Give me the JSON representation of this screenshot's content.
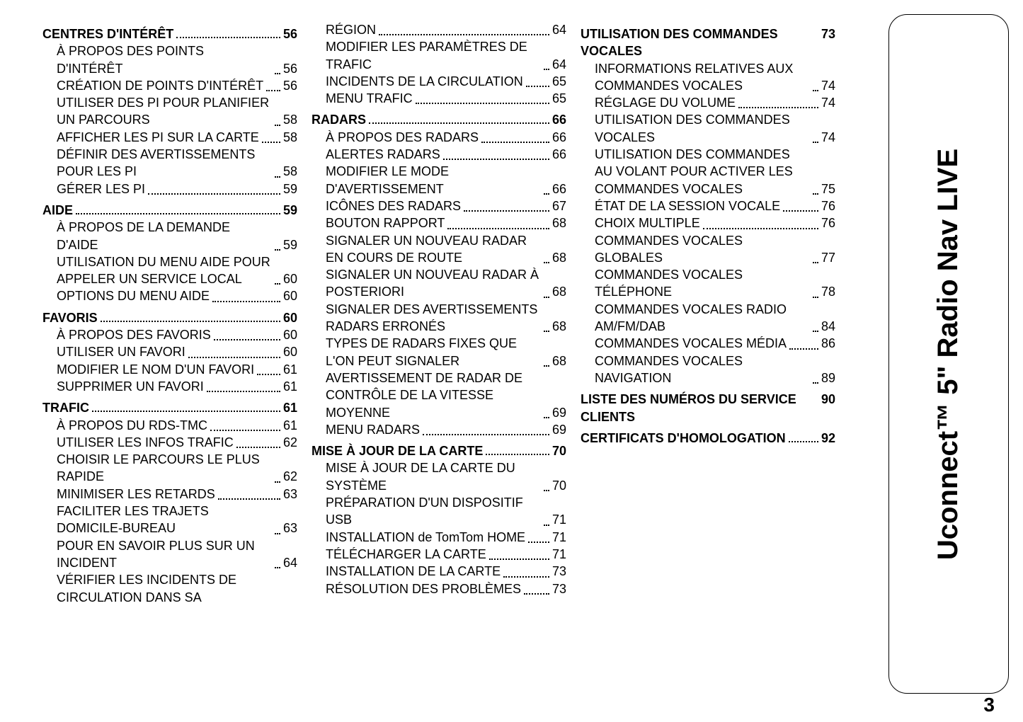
{
  "page_number": "3",
  "side_tab": "Uconnect™ 5\" Radio Nav LIVE",
  "columns": [
    [
      {
        "type": "section",
        "label": "CENTRES D'INTÉRÊT",
        "page": "56"
      },
      {
        "type": "item",
        "label": "À PROPOS DES POINTS D'INTÉRÊT",
        "page": "56"
      },
      {
        "type": "item",
        "label": "CRÉATION DE POINTS D'INTÉRÊT",
        "page": "56"
      },
      {
        "type": "item",
        "label": "UTILISER DES PI POUR PLANIFIER UN PARCOURS",
        "page": "58"
      },
      {
        "type": "item",
        "label": "AFFICHER LES PI SUR LA CARTE",
        "page": "58"
      },
      {
        "type": "item",
        "label": "DÉFINIR DES AVERTISSEMENTS POUR LES PI",
        "page": "58"
      },
      {
        "type": "item",
        "label": "GÉRER LES PI",
        "page": "59"
      },
      {
        "type": "section",
        "label": "AIDE",
        "page": "59"
      },
      {
        "type": "item",
        "label": "À PROPOS DE LA DEMANDE D'AIDE",
        "page": "59"
      },
      {
        "type": "item",
        "label": "UTILISATION DU MENU AIDE POUR APPELER UN SERVICE LOCAL",
        "page": "60"
      },
      {
        "type": "item",
        "label": "OPTIONS DU MENU AIDE",
        "page": "60"
      },
      {
        "type": "section",
        "label": "FAVORIS",
        "page": "60"
      },
      {
        "type": "item",
        "label": "À PROPOS DES FAVORIS",
        "page": "60"
      },
      {
        "type": "item",
        "label": "UTILISER UN FAVORI",
        "page": "60"
      },
      {
        "type": "item",
        "label": "MODIFIER LE NOM D'UN FAVORI",
        "page": "61"
      },
      {
        "type": "item",
        "label": "SUPPRIMER UN FAVORI",
        "page": "61"
      },
      {
        "type": "section",
        "label": "TRAFIC",
        "page": "61"
      },
      {
        "type": "item",
        "label": "À PROPOS DU RDS-TMC",
        "page": "61"
      },
      {
        "type": "item",
        "label": "UTILISER LES INFOS TRAFIC",
        "page": "62"
      },
      {
        "type": "item",
        "label": "CHOISIR LE PARCOURS LE PLUS RAPIDE",
        "page": "62"
      },
      {
        "type": "item",
        "label": "MINIMISER LES RETARDS",
        "page": "63"
      },
      {
        "type": "item",
        "label": "FACILITER LES TRAJETS DOMICILE-BUREAU",
        "page": "63"
      },
      {
        "type": "item",
        "label": "POUR EN SAVOIR PLUS SUR UN INCIDENT",
        "page": "64"
      },
      {
        "type": "item",
        "label": "VÉRIFIER LES INCIDENTS DE CIRCULATION DANS SA",
        "page": ""
      }
    ],
    [
      {
        "type": "item",
        "label": "RÉGION",
        "page": "64"
      },
      {
        "type": "item",
        "label": "MODIFIER LES PARAMÈTRES DE TRAFIC",
        "page": "64"
      },
      {
        "type": "item",
        "label": "INCIDENTS DE LA CIRCULATION",
        "page": "65"
      },
      {
        "type": "item",
        "label": "MENU TRAFIC",
        "page": "65"
      },
      {
        "type": "section",
        "label": "RADARS",
        "page": "66"
      },
      {
        "type": "item",
        "label": "À PROPOS DES RADARS",
        "page": "66"
      },
      {
        "type": "item",
        "label": "ALERTES RADARS",
        "page": "66"
      },
      {
        "type": "item",
        "label": "MODIFIER LE MODE D'AVERTISSEMENT",
        "page": "66"
      },
      {
        "type": "item",
        "label": "ICÔNES DES RADARS",
        "page": "67"
      },
      {
        "type": "item",
        "label": "BOUTON RAPPORT",
        "page": "68"
      },
      {
        "type": "item",
        "label": "SIGNALER UN NOUVEAU RADAR EN COURS DE ROUTE",
        "page": "68"
      },
      {
        "type": "item",
        "label": "SIGNALER UN NOUVEAU RADAR À POSTERIORI",
        "page": "68"
      },
      {
        "type": "item",
        "label": "SIGNALER DES AVERTISSEMENTS RADARS ERRONÉS",
        "page": "68"
      },
      {
        "type": "item",
        "label": "TYPES DE RADARS FIXES QUE L'ON PEUT SIGNALER",
        "page": "68"
      },
      {
        "type": "item",
        "label": "AVERTISSEMENT DE RADAR DE CONTRÔLE DE LA VITESSE MOYENNE",
        "page": "69"
      },
      {
        "type": "item",
        "label": "MENU RADARS",
        "page": "69"
      },
      {
        "type": "section",
        "label": "MISE À JOUR DE LA CARTE",
        "page": "70"
      },
      {
        "type": "item",
        "label": "MISE À JOUR DE LA CARTE DU SYSTÈME",
        "page": "70"
      },
      {
        "type": "item",
        "label": "PRÉPARATION D'UN DISPOSITIF USB",
        "page": "71"
      },
      {
        "type": "item",
        "label": "INSTALLATION de TomTom HOME",
        "page": "71"
      },
      {
        "type": "item",
        "label": "TÉLÉCHARGER LA CARTE",
        "page": "71"
      },
      {
        "type": "item",
        "label": "INSTALLATION DE LA CARTE",
        "page": "73"
      },
      {
        "type": "item",
        "label": "RÉSOLUTION DES PROBLÈMES",
        "page": "73"
      }
    ],
    [
      {
        "type": "section",
        "label": "UTILISATION DES COMMANDES VOCALES",
        "page": "73"
      },
      {
        "type": "item",
        "label": "INFORMATIONS RELATIVES AUX COMMANDES VOCALES",
        "page": "74"
      },
      {
        "type": "item",
        "label": "RÉGLAGE DU VOLUME",
        "page": "74"
      },
      {
        "type": "item",
        "label": "UTILISATION DES COMMANDES VOCALES",
        "page": "74"
      },
      {
        "type": "item",
        "label": "UTILISATION DES COMMANDES AU VOLANT POUR ACTIVER LES COMMANDES VOCALES",
        "page": "75"
      },
      {
        "type": "item",
        "label": "ÉTAT DE LA SESSION VOCALE",
        "page": "76"
      },
      {
        "type": "item",
        "label": "CHOIX MULTIPLE",
        "page": "76"
      },
      {
        "type": "item",
        "label": "COMMANDES VOCALES GLOBALES",
        "page": "77"
      },
      {
        "type": "item",
        "label": "COMMANDES VOCALES TÉLÉPHONE",
        "page": "78"
      },
      {
        "type": "item",
        "label": "COMMANDES VOCALES RADIO AM/FM/DAB",
        "page": "84"
      },
      {
        "type": "item",
        "label": "COMMANDES VOCALES MÉDIA",
        "page": "86"
      },
      {
        "type": "item",
        "label": "COMMANDES VOCALES NAVIGATION",
        "page": "89"
      },
      {
        "type": "section",
        "label": "LISTE DES NUMÉROS DU SERVICE CLIENTS",
        "page": "90"
      },
      {
        "type": "section",
        "label": "CERTIFICATS D'HOMOLOGATION",
        "page": "92"
      }
    ]
  ]
}
